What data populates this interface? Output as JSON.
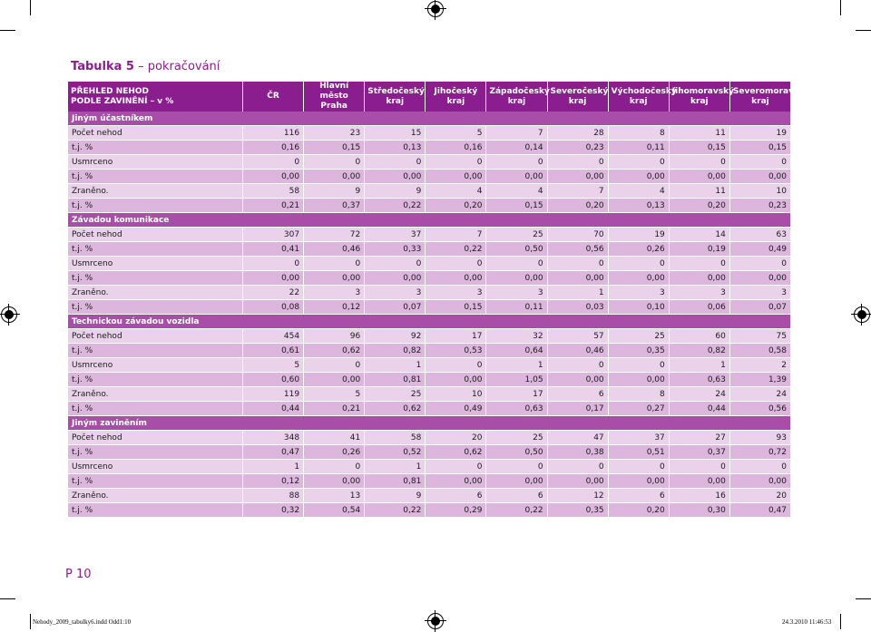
{
  "title": {
    "bold": "Tabulka 5",
    "rest": " – pokračování"
  },
  "header": {
    "first_line1": "PŘEHLED NEHOD",
    "first_line2": "PODLE ZAVINĚNÍ – v %",
    "cols": [
      {
        "l1": "ČR",
        "l2": ""
      },
      {
        "l1": "Hlavní město",
        "l2": "Praha"
      },
      {
        "l1": "Středočeský",
        "l2": "kraj"
      },
      {
        "l1": "Jihočeský",
        "l2": "kraj"
      },
      {
        "l1": "Západočeský",
        "l2": "kraj"
      },
      {
        "l1": "Severočeský",
        "l2": "kraj"
      },
      {
        "l1": "Východočeský",
        "l2": "kraj"
      },
      {
        "l1": "Jihomoravský",
        "l2": "kraj"
      },
      {
        "l1": "Severomoravský",
        "l2": "kraj"
      }
    ]
  },
  "sections": [
    {
      "name": "Jiným účastníkem",
      "rows": [
        {
          "label": "Počet nehod",
          "values": [
            "116",
            "23",
            "15",
            "5",
            "7",
            "28",
            "8",
            "11",
            "19"
          ]
        },
        {
          "label": "t.j. %",
          "values": [
            "0,16",
            "0,15",
            "0,13",
            "0,16",
            "0,14",
            "0,23",
            "0,11",
            "0,15",
            "0,15"
          ]
        },
        {
          "label": "Usmrceno",
          "values": [
            "0",
            "0",
            "0",
            "0",
            "0",
            "0",
            "0",
            "0",
            "0"
          ]
        },
        {
          "label": "t.j. %",
          "values": [
            "0,00",
            "0,00",
            "0,00",
            "0,00",
            "0,00",
            "0,00",
            "0,00",
            "0,00",
            "0,00"
          ]
        },
        {
          "label": "Zraněno.",
          "values": [
            "58",
            "9",
            "9",
            "4",
            "4",
            "7",
            "4",
            "11",
            "10"
          ]
        },
        {
          "label": "t.j. %",
          "values": [
            "0,21",
            "0,37",
            "0,22",
            "0,20",
            "0,15",
            "0,20",
            "0,13",
            "0,20",
            "0,23"
          ]
        }
      ]
    },
    {
      "name": "Závadou komunikace",
      "rows": [
        {
          "label": "Počet nehod",
          "values": [
            "307",
            "72",
            "37",
            "7",
            "25",
            "70",
            "19",
            "14",
            "63"
          ]
        },
        {
          "label": "t.j. %",
          "values": [
            "0,41",
            "0,46",
            "0,33",
            "0,22",
            "0,50",
            "0,56",
            "0,26",
            "0,19",
            "0,49"
          ]
        },
        {
          "label": "Usmrceno",
          "values": [
            "0",
            "0",
            "0",
            "0",
            "0",
            "0",
            "0",
            "0",
            "0"
          ]
        },
        {
          "label": "t.j. %",
          "values": [
            "0,00",
            "0,00",
            "0,00",
            "0,00",
            "0,00",
            "0,00",
            "0,00",
            "0,00",
            "0,00"
          ]
        },
        {
          "label": "Zraněno.",
          "values": [
            "22",
            "3",
            "3",
            "3",
            "3",
            "1",
            "3",
            "3",
            "3"
          ]
        },
        {
          "label": "t.j. %",
          "values": [
            "0,08",
            "0,12",
            "0,07",
            "0,15",
            "0,11",
            "0,03",
            "0,10",
            "0,06",
            "0,07"
          ]
        }
      ]
    },
    {
      "name": "Technickou závadou vozidla",
      "rows": [
        {
          "label": "Počet nehod",
          "values": [
            "454",
            "96",
            "92",
            "17",
            "32",
            "57",
            "25",
            "60",
            "75"
          ]
        },
        {
          "label": "t.j. %",
          "values": [
            "0,61",
            "0,62",
            "0,82",
            "0,53",
            "0,64",
            "0,46",
            "0,35",
            "0,82",
            "0,58"
          ]
        },
        {
          "label": "Usmrceno",
          "values": [
            "5",
            "0",
            "1",
            "0",
            "1",
            "0",
            "0",
            "1",
            "2"
          ]
        },
        {
          "label": "t.j. %",
          "values": [
            "0,60",
            "0,00",
            "0,81",
            "0,00",
            "1,05",
            "0,00",
            "0,00",
            "0,63",
            "1,39"
          ]
        },
        {
          "label": "Zraněno.",
          "values": [
            "119",
            "5",
            "25",
            "10",
            "17",
            "6",
            "8",
            "24",
            "24"
          ]
        },
        {
          "label": "t.j. %",
          "values": [
            "0,44",
            "0,21",
            "0,62",
            "0,49",
            "0,63",
            "0,17",
            "0,27",
            "0,44",
            "0,56"
          ]
        }
      ]
    },
    {
      "name": "Jiným zaviněním",
      "rows": [
        {
          "label": "Počet nehod",
          "values": [
            "348",
            "41",
            "58",
            "20",
            "25",
            "47",
            "37",
            "27",
            "93"
          ]
        },
        {
          "label": "t.j. %",
          "values": [
            "0,47",
            "0,26",
            "0,52",
            "0,62",
            "0,50",
            "0,38",
            "0,51",
            "0,37",
            "0,72"
          ]
        },
        {
          "label": "Usmrceno",
          "values": [
            "1",
            "0",
            "1",
            "0",
            "0",
            "0",
            "0",
            "0",
            "0"
          ]
        },
        {
          "label": "t.j. %",
          "values": [
            "0,12",
            "0,00",
            "0,81",
            "0,00",
            "0,00",
            "0,00",
            "0,00",
            "0,00",
            "0,00"
          ]
        },
        {
          "label": "Zraněno.",
          "values": [
            "88",
            "13",
            "9",
            "6",
            "6",
            "12",
            "6",
            "16",
            "20"
          ]
        },
        {
          "label": "t.j. %",
          "values": [
            "0,32",
            "0,54",
            "0,22",
            "0,29",
            "0,22",
            "0,35",
            "0,20",
            "0,30",
            "0,47"
          ]
        }
      ]
    }
  ],
  "page_number": "P 10",
  "slug_left": "Nehody_2009_tabulky6.indd   Odd1:10",
  "slug_right": "24.3.2010   11:46:53"
}
